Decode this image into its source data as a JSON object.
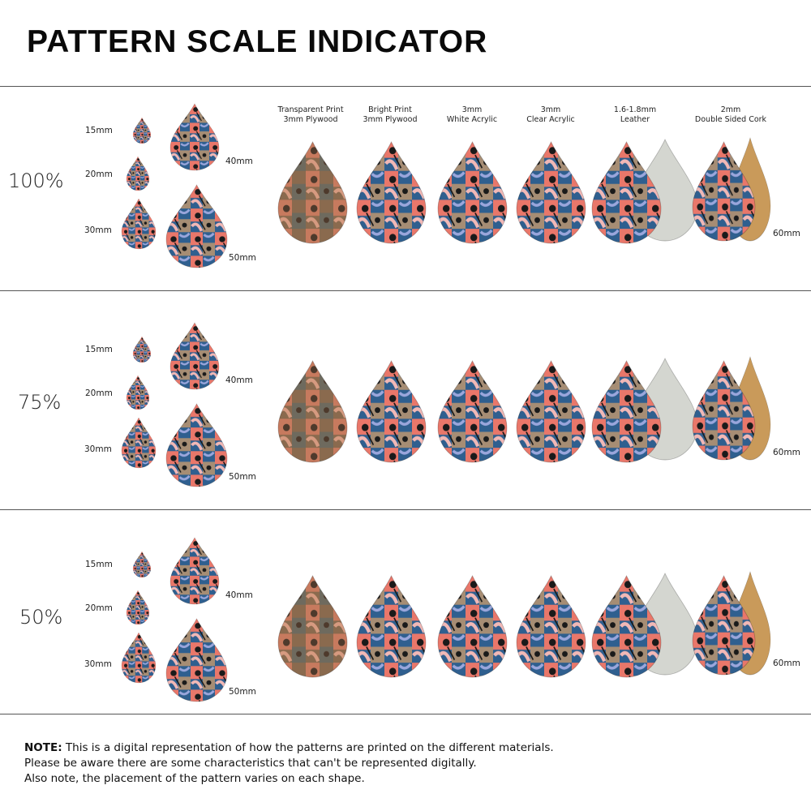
{
  "title": "PATTERN SCALE INDICATOR",
  "materials": [
    {
      "line1": "Transparent Print",
      "line2": "3mm Plywood"
    },
    {
      "line1": "Bright Print",
      "line2": "3mm Plywood"
    },
    {
      "line1": "3mm",
      "line2": "White Acrylic"
    },
    {
      "line1": "3mm",
      "line2": "Clear Acrylic"
    },
    {
      "line1": "1.6-1.8mm",
      "line2": "Leather"
    },
    {
      "line1": "2mm",
      "line2": "Double Sided Cork"
    }
  ],
  "sections": [
    {
      "scale": "100%",
      "sizes": [
        "15mm",
        "20mm",
        "30mm",
        "40mm",
        "50mm"
      ],
      "large_size": "60mm"
    },
    {
      "scale": "75%",
      "sizes": [
        "15mm",
        "20mm",
        "30mm",
        "40mm",
        "50mm"
      ],
      "large_size": "60mm"
    },
    {
      "scale": "50%",
      "sizes": [
        "15mm",
        "20mm",
        "30mm",
        "40mm",
        "50mm"
      ],
      "large_size": "60mm"
    }
  ],
  "note": {
    "label": "NOTE:",
    "line1": "This is a digital representation of how the patterns are printed on the different materials.",
    "line2": "Please be aware there are some characteristics that can't be represented digitally.",
    "line3": "Also note, the placement of the pattern varies on each shape."
  },
  "colors": {
    "coral": "#e9776a",
    "blue": "#2f5f8f",
    "tan": "#a68d74",
    "pink": "#f1b8b6",
    "black": "#1a1a1a",
    "lavender": "#9aa6dc",
    "leather": "#d4d6d0",
    "cork": "#c99a5a",
    "wood": "#8a6a4e"
  }
}
